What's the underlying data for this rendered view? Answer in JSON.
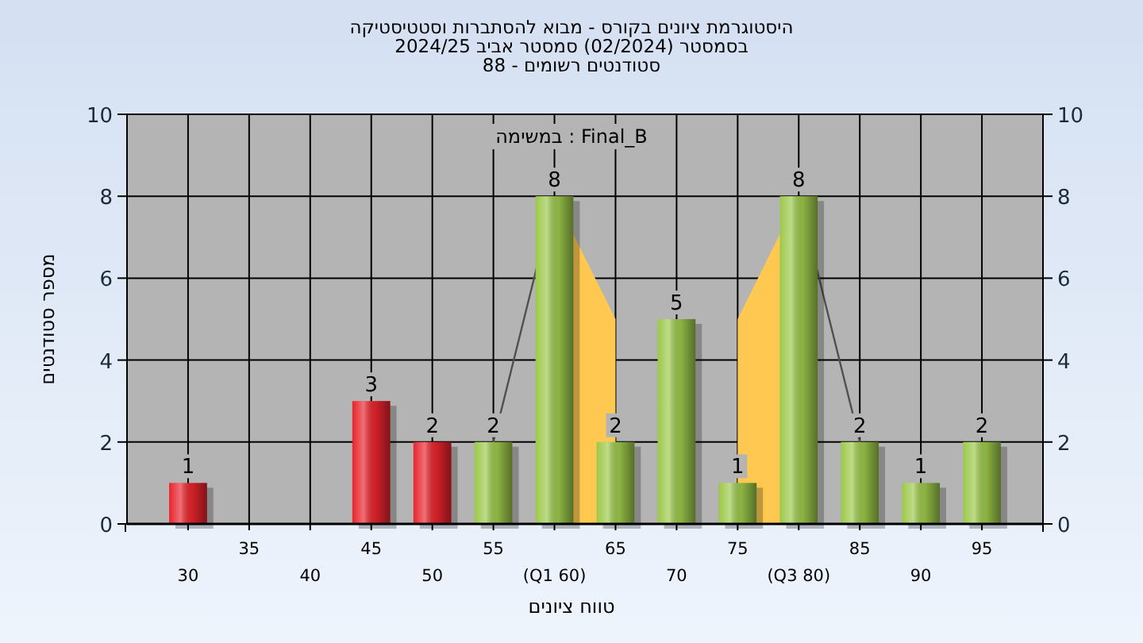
{
  "chart_data": {
    "type": "bar",
    "title": "היסטוגרמת ציונים בקורס - מבוא להסתברות וסטטיסטיקה",
    "subtitle": "בסמסטר  (02/2024)  סמסטר אביב 2024/25\nסטודנטים רשומים - 88",
    "xlabel": "טווח ציונים",
    "ylabel": "מספר סטודנטים",
    "annotations": [
      "במשימה : Final_B"
    ],
    "categories": [
      "30",
      "35",
      "40",
      "45",
      "50",
      "55",
      "(Q1 60)",
      "65",
      "70",
      "75",
      "(Q3 80)",
      "85",
      "90",
      "95"
    ],
    "series": [
      {
        "type": "area",
        "color": "#ffc850",
        "values": [
          null,
          null,
          null,
          null,
          null,
          null,
          8,
          5,
          null,
          5,
          8,
          null,
          null,
          null
        ]
      },
      {
        "type": "line",
        "color": "#505050",
        "values": [
          null,
          null,
          null,
          null,
          null,
          2,
          8,
          null,
          null,
          null,
          8,
          2,
          null,
          null
        ]
      },
      {
        "type": "bar",
        "colors": [
          "#e8242c",
          "#e8242c",
          "#e8242c",
          "#e8242c",
          "#e8242c",
          "#9cc84a",
          "#9cc84a",
          "#9cc84a",
          "#9cc84a",
          "#9cc84a",
          "#9cc84a",
          "#9cc84a",
          "#9cc84a",
          "#9cc84a"
        ],
        "values": [
          1,
          0,
          0,
          3,
          2,
          2,
          8,
          2,
          5,
          1,
          8,
          2,
          1,
          2
        ],
        "value_labels": [
          "1",
          null,
          null,
          "3",
          "2",
          "2",
          "8",
          "2",
          "5",
          "1",
          "8",
          "2",
          "1",
          "2"
        ]
      }
    ],
    "ylim": [
      0,
      10
    ],
    "yticks": [
      0,
      2,
      4,
      6,
      8,
      10
    ],
    "y2lim": [
      0,
      10
    ],
    "y2ticks": [
      0,
      2,
      4,
      6,
      8,
      10
    ],
    "grid": true
  }
}
